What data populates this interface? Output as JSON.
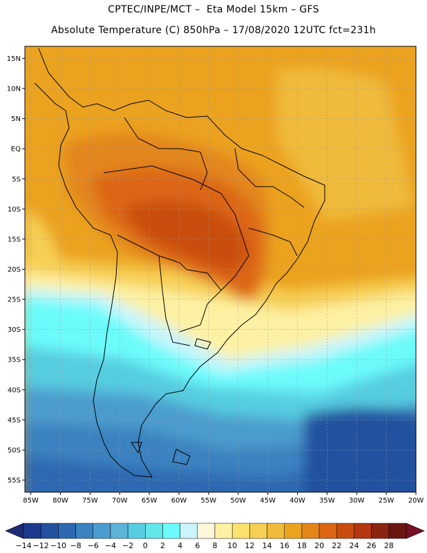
{
  "title": {
    "line1": "CPTEC/INPE/MCT –  Eta Model 15km – GFS",
    "line2": "Absolute Temperature (C) 850hPa – 17/08/2020 12UTC fct=231h"
  },
  "map": {
    "lon_range": [
      -86,
      -20
    ],
    "lat_range": [
      -57,
      17
    ],
    "x_ticks": [
      "85W",
      "80W",
      "75W",
      "70W",
      "65W",
      "60W",
      "55W",
      "50W",
      "45W",
      "40W",
      "35W",
      "30W",
      "25W",
      "20W"
    ],
    "y_ticks": [
      "15N",
      "10N",
      "5N",
      "EQ",
      "5S",
      "10S",
      "15S",
      "20S",
      "25S",
      "30S",
      "35S",
      "40S",
      "45S",
      "50S",
      "55S"
    ]
  },
  "colorbar": {
    "labels": [
      "-14",
      "-12",
      "-10",
      "-8",
      "-6",
      "-4",
      "-2",
      "0",
      "2",
      "4",
      "6",
      "8",
      "10",
      "12",
      "14",
      "16",
      "18",
      "20",
      "22",
      "24",
      "26",
      "28"
    ],
    "colors": [
      "#1b3a8c",
      "#24519f",
      "#2d68b0",
      "#3a82c0",
      "#4b9cce",
      "#5cb4d9",
      "#56cde0",
      "#63e6ea",
      "#6cfbfb",
      "#c9f5fb",
      "#fef7dc",
      "#fdf1a3",
      "#fbe170",
      "#f6cf54",
      "#f0ba3a",
      "#eba21f",
      "#e3861a",
      "#dc6612",
      "#c94d0f",
      "#b5380f",
      "#8b2410",
      "#6a1510"
    ],
    "low_color": "#1e2a74",
    "high_color": "#7a0e24"
  }
}
